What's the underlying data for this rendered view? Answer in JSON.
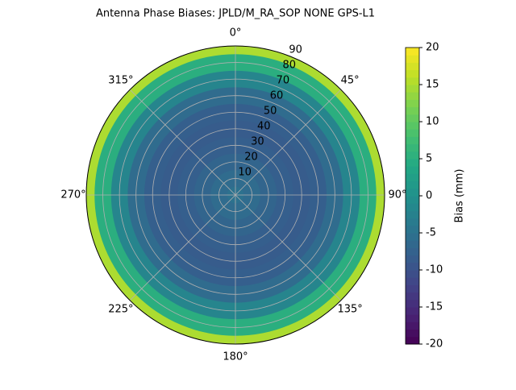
{
  "chart_data": {
    "type": "polar-heatmap",
    "title": "Antenna Phase Biases: JPLD/M_RA_SOP   NONE GPS-L1",
    "r": [
      0,
      10,
      20,
      30,
      40,
      50,
      60,
      70,
      80,
      90
    ],
    "values": [
      -5,
      -6,
      -7,
      -8,
      -8.5,
      -8,
      -6,
      -2,
      5,
      15
    ],
    "rlim": [
      0,
      90
    ],
    "rticks": [
      10,
      20,
      30,
      40,
      50,
      60,
      70,
      80,
      90
    ],
    "thetaticks": [
      {
        "value": 0,
        "label": "0°"
      },
      {
        "value": 45,
        "label": "45°"
      },
      {
        "value": 90,
        "label": "90°"
      },
      {
        "value": 135,
        "label": "135°"
      },
      {
        "value": 180,
        "label": "180°"
      },
      {
        "value": 225,
        "label": "225°"
      },
      {
        "value": 270,
        "label": "270°"
      },
      {
        "value": 315,
        "label": "315°"
      }
    ],
    "colormap": "viridis",
    "colorbar_label": "Bias (mm)",
    "clim": [
      -20,
      20
    ],
    "cticks": [
      -20,
      -15,
      -10,
      -5,
      0,
      5,
      10,
      15,
      20
    ],
    "grid": true
  }
}
